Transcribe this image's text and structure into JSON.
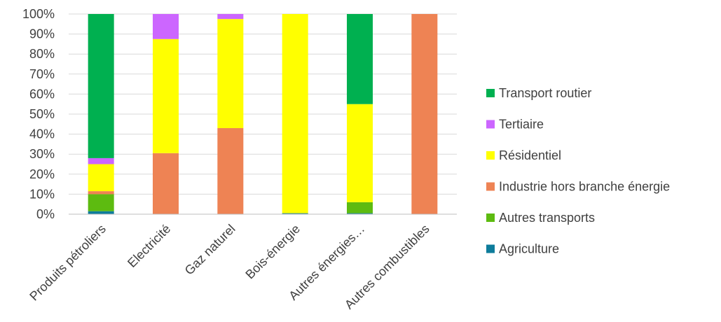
{
  "chart_data": {
    "type": "bar",
    "stacked": true,
    "normalized": true,
    "categories": [
      "Produits pétroliers",
      "Electricité",
      "Gaz naturel",
      "Bois-énergie",
      "Autres énergies…",
      "Autres combustibles"
    ],
    "series": [
      {
        "name": "Agriculture",
        "color": "#0E7C9B",
        "values": [
          1.5,
          0,
          0,
          0.5,
          0.5,
          0
        ]
      },
      {
        "name": "Autres transports",
        "color": "#5DBB10",
        "values": [
          8.5,
          0,
          0,
          0,
          5.5,
          0
        ]
      },
      {
        "name": "Industrie hors branche énergie",
        "color": "#EE8354",
        "values": [
          1.5,
          30.5,
          43,
          0,
          0,
          100
        ]
      },
      {
        "name": "Résidentiel",
        "color": "#FFFF00",
        "values": [
          13.5,
          57,
          54.5,
          99.5,
          49,
          0
        ]
      },
      {
        "name": "Tertiaire",
        "color": "#CC66FF",
        "values": [
          3,
          12.5,
          2.5,
          0,
          0,
          0
        ]
      },
      {
        "name": "Transport routier",
        "color": "#00B050",
        "values": [
          72,
          0,
          0,
          0,
          45,
          0
        ]
      }
    ],
    "yticks": [
      "0%",
      "10%",
      "20%",
      "30%",
      "40%",
      "50%",
      "60%",
      "70%",
      "80%",
      "90%",
      "100%"
    ],
    "ylim": [
      0,
      100
    ],
    "grid": true,
    "legend_position": "right",
    "legend_order": [
      "Transport routier",
      "Tertiaire",
      "Résidentiel",
      "Industrie hors branche énergie",
      "Autres transports",
      "Agriculture"
    ]
  }
}
